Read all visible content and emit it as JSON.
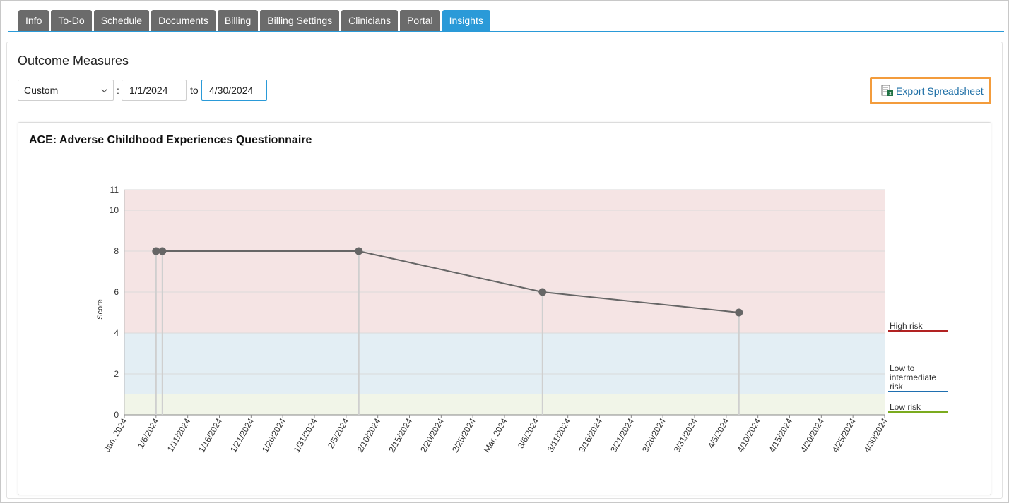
{
  "tabs": [
    {
      "label": "Info",
      "active": false
    },
    {
      "label": "To-Do",
      "active": false
    },
    {
      "label": "Schedule",
      "active": false
    },
    {
      "label": "Documents",
      "active": false
    },
    {
      "label": "Billing",
      "active": false
    },
    {
      "label": "Billing Settings",
      "active": false
    },
    {
      "label": "Clinicians",
      "active": false
    },
    {
      "label": "Portal",
      "active": false
    },
    {
      "label": "Insights",
      "active": true
    }
  ],
  "page": {
    "title": "Outcome Measures",
    "range_select": "Custom",
    "separator": ":",
    "date_from": "1/1/2024",
    "to_label": "to",
    "date_to": "4/30/2024",
    "export_label": "Export Spreadsheet",
    "export_icon": "spreadsheet-icon"
  },
  "colors": {
    "accent": "#2a9ad8",
    "export_border": "#f39c3c",
    "high_band": "#f5e4e4",
    "mid_band": "#e3eef4",
    "low_band": "#f1f5e8",
    "high_line": "#b22222",
    "mid_line": "#1f6fb0",
    "low_line": "#7bab1e",
    "series": "#666666"
  },
  "chart_data": {
    "type": "line",
    "title": "ACE: Adverse Childhood Experiences Questionnaire",
    "ylabel": "Score",
    "xlabel": "",
    "ylim": [
      0,
      11
    ],
    "yticks": [
      0,
      2,
      4,
      6,
      8,
      10,
      11
    ],
    "xlim": [
      "2024-01-01",
      "2024-04-30"
    ],
    "xtick_labels": [
      "Jan, 2024",
      "1/6/2024",
      "1/11/2024",
      "1/16/2024",
      "1/21/2024",
      "1/26/2024",
      "1/31/2024",
      "2/5/2024",
      "2/10/2024",
      "2/15/2024",
      "2/20/2024",
      "2/25/2024",
      "Mar, 2024",
      "3/6/2024",
      "3/11/2024",
      "3/16/2024",
      "3/21/2024",
      "3/26/2024",
      "3/31/2024",
      "4/5/2024",
      "4/10/2024",
      "4/15/2024",
      "4/20/2024",
      "4/25/2024",
      "4/30/2024"
    ],
    "points": [
      {
        "x": "2024-01-06",
        "y": 8
      },
      {
        "x": "2024-01-07",
        "y": 8
      },
      {
        "x": "2024-02-07",
        "y": 8
      },
      {
        "x": "2024-03-07",
        "y": 6
      },
      {
        "x": "2024-04-07",
        "y": 5
      }
    ],
    "bands": [
      {
        "label": "High risk",
        "from": 4,
        "to": 11
      },
      {
        "label": "Low to intermediate risk",
        "from": 1,
        "to": 4
      },
      {
        "label": "Low risk",
        "from": 0,
        "to": 1
      }
    ],
    "grid": true
  }
}
